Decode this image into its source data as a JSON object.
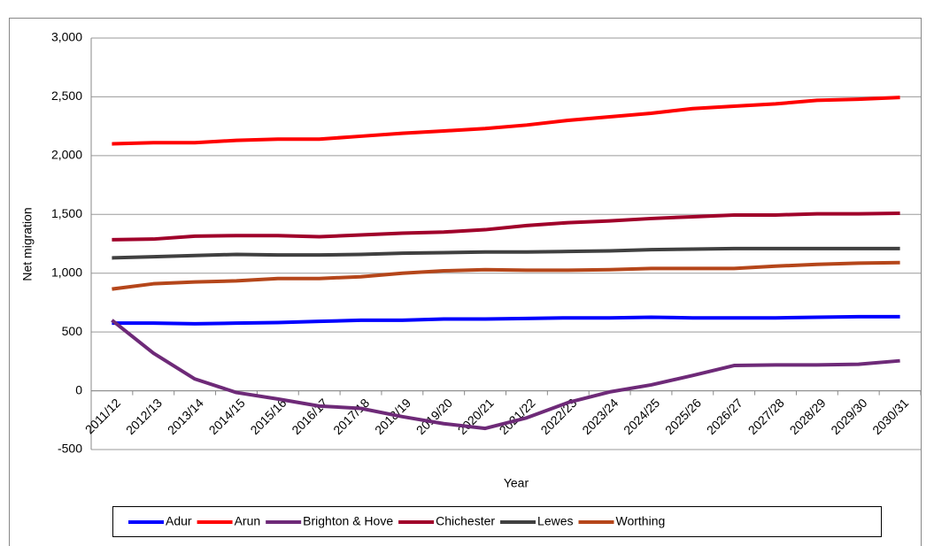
{
  "chart_data": {
    "type": "line",
    "x_label": "Year",
    "y_label": "Net migration",
    "categories": [
      "2011/12",
      "2012/13",
      "2013/14",
      "2014/15",
      "2015/16",
      "2016/17",
      "2017/18",
      "2018/19",
      "2019/20",
      "2020/21",
      "2021/22",
      "2022/23",
      "2023/24",
      "2024/25",
      "2025/26",
      "2026/27",
      "2027/28",
      "2028/29",
      "2029/30",
      "2030/31"
    ],
    "series": [
      {
        "name": "Adur",
        "color": "#0000ff",
        "values": [
          575,
          575,
          570,
          575,
          580,
          590,
          600,
          600,
          610,
          610,
          615,
          620,
          620,
          625,
          620,
          620,
          620,
          625,
          630,
          630
        ]
      },
      {
        "name": "Arun",
        "color": "#ff0000",
        "values": [
          2100,
          2110,
          2110,
          2130,
          2140,
          2140,
          2165,
          2190,
          2210,
          2230,
          2260,
          2300,
          2330,
          2360,
          2400,
          2420,
          2440,
          2470,
          2480,
          2495
        ]
      },
      {
        "name": "Brighton & Hove",
        "color": "#6e2a78",
        "values": [
          600,
          320,
          100,
          -15,
          -70,
          -130,
          -150,
          -220,
          -280,
          -320,
          -230,
          -100,
          -10,
          50,
          130,
          215,
          220,
          220,
          225,
          255
        ]
      },
      {
        "name": "Chichester",
        "color": "#a0002a",
        "values": [
          1285,
          1290,
          1315,
          1320,
          1320,
          1310,
          1325,
          1340,
          1350,
          1370,
          1405,
          1430,
          1445,
          1465,
          1480,
          1495,
          1495,
          1505,
          1505,
          1510
        ]
      },
      {
        "name": "Lewes",
        "color": "#404040",
        "values": [
          1130,
          1140,
          1150,
          1160,
          1155,
          1155,
          1160,
          1170,
          1175,
          1180,
          1180,
          1185,
          1190,
          1200,
          1205,
          1210,
          1210,
          1210,
          1210,
          1210
        ]
      },
      {
        "name": "Worthing",
        "color": "#b5461a",
        "values": [
          865,
          910,
          925,
          935,
          955,
          955,
          970,
          1000,
          1020,
          1030,
          1025,
          1025,
          1030,
          1040,
          1040,
          1040,
          1060,
          1075,
          1085,
          1090
        ]
      }
    ],
    "ylim": [
      -500,
      3000
    ],
    "yticks": [
      -500,
      0,
      500,
      {
        "value": 1000,
        "label": "1,000"
      },
      {
        "value": 1500,
        "label": "1,500"
      },
      {
        "value": 2000,
        "label": "2,000"
      },
      {
        "value": 2500,
        "label": "2,500"
      },
      {
        "value": 3000,
        "label": "3,000"
      }
    ],
    "grid": true
  }
}
